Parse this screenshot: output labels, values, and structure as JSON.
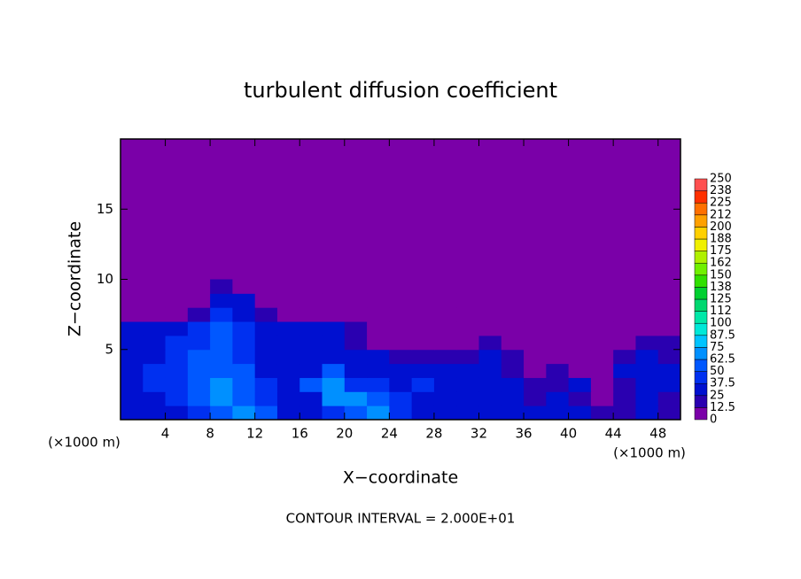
{
  "chart_data": {
    "type": "heatmap",
    "title": "turbulent diffusion coefficient",
    "xlabel": "X−coordinate",
    "ylabel": "Z−coordinate",
    "x_unit_left": "(×1000 m)",
    "x_unit_right": "(×1000 m)",
    "footnote": "CONTOUR INTERVAL = 2.000E+01",
    "xlim": [
      0,
      50
    ],
    "ylim": [
      0,
      20
    ],
    "xticks": [
      4,
      8,
      12,
      16,
      20,
      24,
      28,
      32,
      36,
      40,
      44,
      48
    ],
    "yticks": [
      5,
      10,
      15
    ],
    "background_color": "#7a00a8",
    "x": [
      1,
      3,
      5,
      7,
      9,
      11,
      13,
      15,
      17,
      19,
      21,
      23,
      25,
      27,
      29,
      31,
      33,
      35,
      37,
      39,
      41,
      43,
      45,
      47,
      49
    ],
    "y": [
      0.5,
      1.5,
      2.5,
      3.5,
      4.5,
      5.5,
      6.5,
      7.5,
      8.5,
      9.5
    ],
    "z": [
      [
        30,
        30,
        35,
        45,
        60,
        65,
        50,
        35,
        30,
        40,
        55,
        65,
        40,
        35,
        30,
        35,
        30,
        30,
        25,
        30,
        25,
        20,
        15,
        25,
        20
      ],
      [
        30,
        35,
        40,
        55,
        70,
        60,
        45,
        35,
        35,
        65,
        70,
        50,
        45,
        35,
        30,
        30,
        25,
        25,
        20,
        25,
        20,
        10,
        20,
        25,
        20
      ],
      [
        35,
        40,
        45,
        60,
        70,
        55,
        40,
        30,
        50,
        70,
        45,
        40,
        35,
        40,
        30,
        30,
        35,
        25,
        20,
        20,
        25,
        10,
        20,
        30,
        25
      ],
      [
        35,
        40,
        40,
        55,
        60,
        50,
        35,
        30,
        30,
        60,
        35,
        35,
        30,
        35,
        25,
        30,
        30,
        20,
        10,
        20,
        10,
        5,
        25,
        30,
        25
      ],
      [
        30,
        35,
        45,
        50,
        55,
        45,
        35,
        30,
        30,
        30,
        25,
        25,
        20,
        20,
        15,
        20,
        25,
        15,
        5,
        10,
        5,
        5,
        15,
        25,
        20
      ],
      [
        30,
        35,
        40,
        45,
        55,
        40,
        35,
        30,
        30,
        25,
        20,
        10,
        5,
        10,
        5,
        5,
        15,
        5,
        0,
        5,
        0,
        0,
        5,
        20,
        15
      ],
      [
        30,
        30,
        35,
        40,
        50,
        40,
        30,
        30,
        30,
        25,
        15,
        5,
        0,
        0,
        0,
        0,
        0,
        0,
        0,
        0,
        0,
        0,
        0,
        5,
        5
      ],
      [
        0,
        0,
        5,
        20,
        45,
        35,
        20,
        5,
        0,
        0,
        0,
        0,
        0,
        0,
        0,
        0,
        0,
        0,
        0,
        0,
        0,
        0,
        0,
        0,
        0
      ],
      [
        0,
        0,
        0,
        10,
        30,
        25,
        10,
        0,
        0,
        0,
        0,
        0,
        0,
        0,
        0,
        0,
        0,
        0,
        0,
        0,
        0,
        0,
        0,
        0,
        0
      ],
      [
        0,
        0,
        0,
        5,
        15,
        10,
        0,
        0,
        0,
        0,
        0,
        0,
        0,
        0,
        0,
        0,
        0,
        0,
        0,
        0,
        0,
        0,
        0,
        0,
        0
      ]
    ],
    "colorbar": {
      "levels": [
        0,
        12.5,
        25,
        37.5,
        50,
        62.5,
        75,
        87.5,
        100,
        {
          "value": 112.5,
          "label": "112"
        },
        125,
        {
          "value": 137.5,
          "label": "138"
        },
        150,
        {
          "value": 162.5,
          "label": "162"
        },
        175,
        {
          "value": 187.5,
          "label": "188"
        },
        200,
        {
          "value": 212.5,
          "label": "212"
        },
        225,
        {
          "value": 237.5,
          "label": "238"
        },
        250
      ],
      "colors": [
        "#7a00a8",
        "#2a00b0",
        "#0010d0",
        "#0030f0",
        "#0058ff",
        "#0090ff",
        "#00c4ff",
        "#00e8d8",
        "#00e8a8",
        "#00d870",
        "#00d030",
        "#30e000",
        "#70f000",
        "#b0f000",
        "#f0f000",
        "#ffd000",
        "#ffa000",
        "#ff7000",
        "#ff3000",
        "#ff5050"
      ]
    }
  }
}
